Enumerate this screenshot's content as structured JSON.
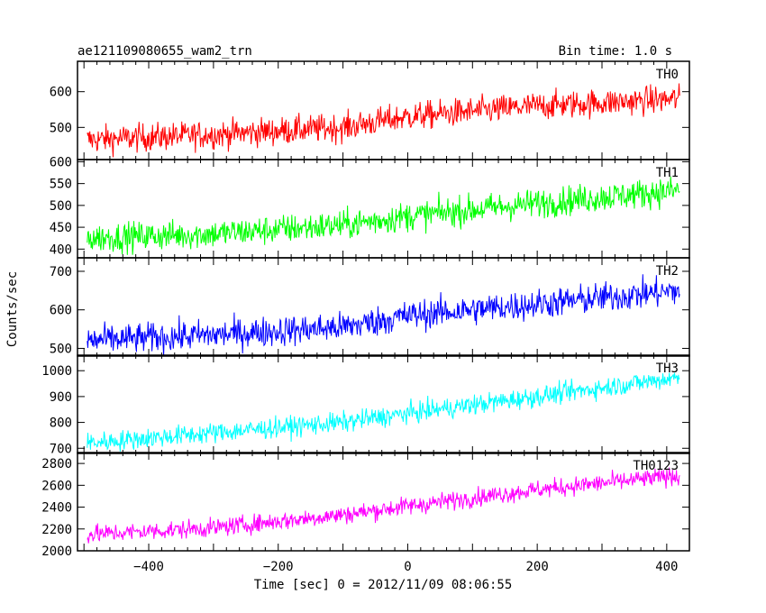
{
  "header": {
    "title": "ae121109080655_wam2_trn",
    "bin_time": "Bin time: 1.0 s"
  },
  "chart_data": {
    "type": "line",
    "xlabel": "Time [sec] 0 = 2012/11/09 08:06:55",
    "ylabel": "Counts/sec",
    "xlim": [
      -510,
      435
    ],
    "x_range": [
      -495,
      420
    ],
    "x_ticks": [
      -400,
      -200,
      0,
      200,
      400
    ],
    "x_tick_labels": [
      "−400",
      "−200",
      "0",
      "200",
      "400"
    ],
    "panels": [
      {
        "name": "TH0",
        "color": "#ff0000",
        "ylim": [
          410,
          685
        ],
        "y_ticks": [
          500,
          600
        ],
        "y_tick_labels": [
          "500",
          "600"
        ],
        "trend": {
          "x": [
            -495,
            -300,
            -100,
            0,
            200,
            420
          ],
          "y": [
            465,
            480,
            500,
            530,
            560,
            580
          ]
        },
        "noise": 28
      },
      {
        "name": "TH1",
        "color": "#00ff00",
        "ylim": [
          380,
          605
        ],
        "y_ticks": [
          400,
          450,
          500,
          550,
          600
        ],
        "y_tick_labels": [
          "400",
          "450",
          "500",
          "550",
          "600"
        ],
        "trend": {
          "x": [
            -495,
            -300,
            -100,
            0,
            200,
            420
          ],
          "y": [
            425,
            435,
            455,
            475,
            505,
            535
          ]
        },
        "noise": 24
      },
      {
        "name": "TH2",
        "color": "#0000ff",
        "ylim": [
          480,
          735
        ],
        "y_ticks": [
          500,
          600,
          700
        ],
        "y_tick_labels": [
          "500",
          "600",
          "700"
        ],
        "trend": {
          "x": [
            -495,
            -300,
            -100,
            0,
            200,
            420
          ],
          "y": [
            520,
            535,
            555,
            585,
            615,
            650
          ]
        },
        "noise": 28
      },
      {
        "name": "TH3",
        "color": "#00ffff",
        "ylim": [
          680,
          1060
        ],
        "y_ticks": [
          700,
          800,
          900,
          1000
        ],
        "y_tick_labels": [
          "700",
          "800",
          "900",
          "1000"
        ],
        "trend": {
          "x": [
            -495,
            -300,
            -100,
            0,
            200,
            420
          ],
          "y": [
            720,
            760,
            800,
            835,
            900,
            975
          ]
        },
        "noise": 28
      },
      {
        "name": "TH0123",
        "color": "#ff00ff",
        "ylim": [
          2000,
          2900
        ],
        "y_ticks": [
          2000,
          2200,
          2400,
          2600,
          2800
        ],
        "y_tick_labels": [
          "2000",
          "2200",
          "2400",
          "2600",
          "2800"
        ],
        "trend": {
          "x": [
            -495,
            -300,
            -100,
            0,
            200,
            420
          ],
          "y": [
            2150,
            2210,
            2330,
            2410,
            2560,
            2690
          ]
        },
        "noise": 60
      }
    ]
  }
}
